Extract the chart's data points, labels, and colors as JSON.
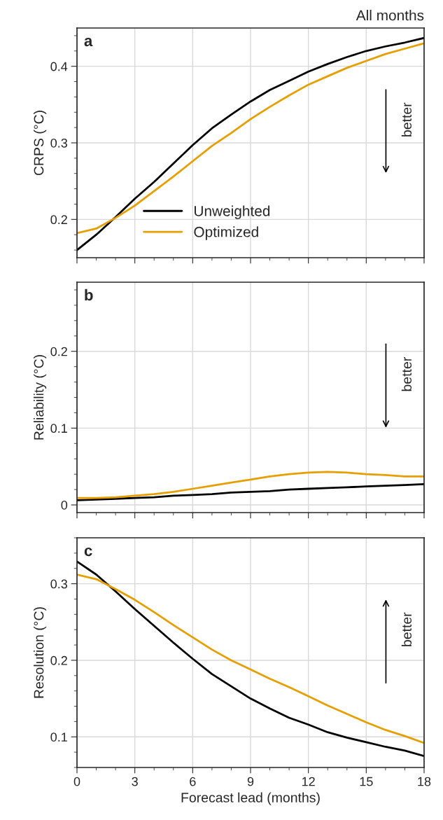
{
  "chart_data": [
    {
      "type": "line",
      "title": "a",
      "subtitle": "All months",
      "ylabel": "CRPS (°C)",
      "x": [
        0,
        1,
        2,
        3,
        4,
        5,
        6,
        7,
        8,
        9,
        10,
        11,
        12,
        13,
        14,
        15,
        16,
        17,
        18
      ],
      "series": [
        {
          "name": "Unweighted",
          "color": "#000000",
          "values": [
            0.16,
            0.18,
            0.203,
            0.227,
            0.249,
            0.273,
            0.297,
            0.319,
            0.337,
            0.354,
            0.369,
            0.381,
            0.393,
            0.403,
            0.412,
            0.42,
            0.426,
            0.431,
            0.437
          ]
        },
        {
          "name": "Optimized",
          "color": "#e69f00",
          "values": [
            0.182,
            0.188,
            0.202,
            0.218,
            0.237,
            0.256,
            0.276,
            0.296,
            0.313,
            0.331,
            0.347,
            0.362,
            0.376,
            0.387,
            0.398,
            0.407,
            0.416,
            0.423,
            0.43
          ]
        }
      ],
      "xlim": [
        0,
        18
      ],
      "xticks": [
        0,
        3,
        6,
        9,
        12,
        15,
        18
      ],
      "ylim": [
        0.15,
        0.45
      ],
      "yticks": [
        0.2,
        0.3,
        0.4
      ],
      "grid": true,
      "legend": "bottom",
      "tick_labels": "y",
      "annotations": [
        "better"
      ]
    },
    {
      "type": "line",
      "title": "b",
      "ylabel": "Reliability (°C)",
      "x": [
        0,
        1,
        2,
        3,
        4,
        5,
        6,
        7,
        8,
        9,
        10,
        11,
        12,
        13,
        14,
        15,
        16,
        17,
        18
      ],
      "series": [
        {
          "color": "#000000",
          "values": [
            0.006,
            0.007,
            0.008,
            0.009,
            0.01,
            0.012,
            0.013,
            0.014,
            0.016,
            0.017,
            0.018,
            0.02,
            0.021,
            0.022,
            0.023,
            0.024,
            0.025,
            0.026,
            0.027
          ]
        },
        {
          "color": "#e69f00",
          "values": [
            0.009,
            0.009,
            0.01,
            0.012,
            0.014,
            0.017,
            0.021,
            0.025,
            0.029,
            0.033,
            0.037,
            0.04,
            0.042,
            0.043,
            0.042,
            0.04,
            0.039,
            0.037,
            0.037
          ]
        }
      ],
      "xlim": [
        0,
        18
      ],
      "xticks": [
        0,
        3,
        6,
        9,
        12,
        15,
        18
      ],
      "ylim": [
        -0.01,
        0.29
      ],
      "yticks": [
        0,
        0.1,
        0.2
      ],
      "grid": true,
      "tick_labels": "y",
      "annotations": [
        "better"
      ]
    },
    {
      "type": "line",
      "title": "c",
      "xlabel": "Forecast lead (months)",
      "ylabel": "Resolution (°C)",
      "x": [
        0,
        1,
        2,
        3,
        4,
        5,
        6,
        7,
        8,
        9,
        10,
        11,
        12,
        13,
        14,
        15,
        16,
        17,
        18
      ],
      "series": [
        {
          "color": "#000000",
          "values": [
            0.329,
            0.312,
            0.29,
            0.267,
            0.245,
            0.223,
            0.202,
            0.182,
            0.166,
            0.15,
            0.137,
            0.125,
            0.116,
            0.106,
            0.099,
            0.093,
            0.087,
            0.082,
            0.075
          ]
        },
        {
          "color": "#e69f00",
          "values": [
            0.312,
            0.306,
            0.293,
            0.279,
            0.263,
            0.246,
            0.23,
            0.214,
            0.2,
            0.188,
            0.176,
            0.165,
            0.153,
            0.141,
            0.13,
            0.119,
            0.109,
            0.101,
            0.092
          ]
        }
      ],
      "xlim": [
        0,
        18
      ],
      "xticks": [
        0,
        3,
        6,
        9,
        12,
        15,
        18
      ],
      "ylim": [
        0.06,
        0.36
      ],
      "yticks": [
        0.1,
        0.2,
        0.3
      ],
      "grid": true,
      "annotations": [
        "better"
      ]
    }
  ]
}
